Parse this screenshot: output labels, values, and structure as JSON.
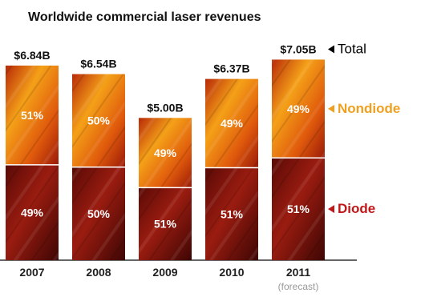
{
  "chart_data": {
    "type": "bar",
    "stacked": true,
    "title": "Worldwide commercial laser revenues",
    "categories": [
      "2007",
      "2008",
      "2009",
      "2010",
      "2011"
    ],
    "category_notes": [
      "",
      "",
      "",
      "",
      "(forecast)"
    ],
    "totals": [
      6.84,
      6.54,
      5.0,
      6.37,
      7.05
    ],
    "total_labels": [
      "$6.84B",
      "$6.54B",
      "$5.00B",
      "$6.37B",
      "$7.05B"
    ],
    "series": [
      {
        "name": "Diode",
        "values_percent": [
          49,
          50,
          51,
          51,
          51
        ],
        "labels": [
          "49%",
          "50%",
          "51%",
          "51%",
          "51%"
        ],
        "color": "#8b1a10"
      },
      {
        "name": "Nondiode",
        "values_percent": [
          51,
          50,
          49,
          49,
          49
        ],
        "labels": [
          "51%",
          "50%",
          "49%",
          "49%",
          "49%"
        ],
        "color": "#f08c10"
      }
    ],
    "legend": [
      {
        "label": "Total",
        "color": "#000000"
      },
      {
        "label": "Nondiode",
        "color": "#f0a020"
      },
      {
        "label": "Diode",
        "color": "#c01818"
      }
    ],
    "ylim": [
      0,
      7.4
    ],
    "legend_position": "right"
  }
}
